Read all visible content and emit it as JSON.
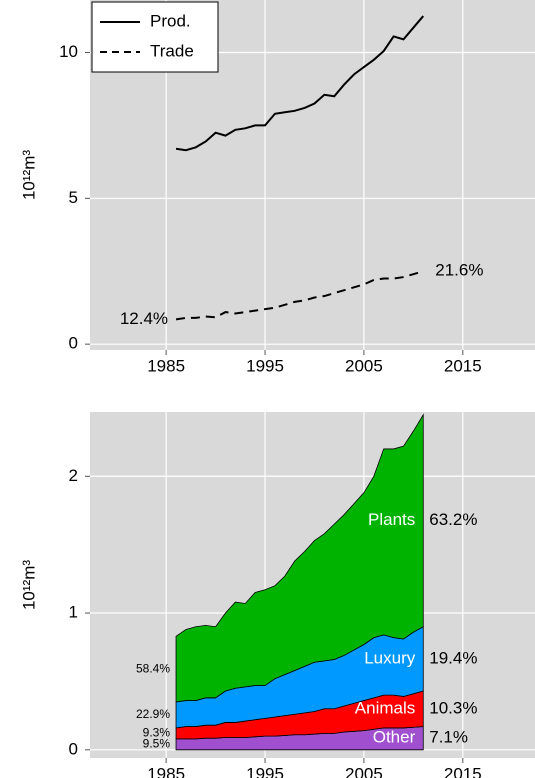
{
  "chart_data": [
    {
      "type": "line",
      "ylabel": "10¹²m³",
      "x": [
        1986,
        1987,
        1988,
        1989,
        1990,
        1991,
        1992,
        1993,
        1994,
        1995,
        1996,
        1997,
        1998,
        1999,
        2000,
        2001,
        2002,
        2003,
        2004,
        2005,
        2006,
        2007,
        2008,
        2009,
        2010,
        2011
      ],
      "series": [
        {
          "name": "Prod.",
          "color": "#000000",
          "dash": "solid",
          "values": [
            6.7,
            6.65,
            6.75,
            6.95,
            7.25,
            7.15,
            7.35,
            7.4,
            7.5,
            7.5,
            7.9,
            7.95,
            8.0,
            8.1,
            8.25,
            8.55,
            8.5,
            8.9,
            9.25,
            9.5,
            9.75,
            10.05,
            10.55,
            10.45,
            10.85,
            11.25
          ]
        },
        {
          "name": "Trade",
          "color": "#000000",
          "dash": "dashed",
          "start_label": "12.4%",
          "end_label": "21.6%",
          "values": [
            0.85,
            0.9,
            0.9,
            0.95,
            0.92,
            1.1,
            1.05,
            1.1,
            1.15,
            1.2,
            1.25,
            1.35,
            1.45,
            1.5,
            1.6,
            1.65,
            1.75,
            1.85,
            1.95,
            2.05,
            2.2,
            2.25,
            2.25,
            2.3,
            2.4,
            2.5
          ]
        }
      ],
      "xlim": [
        1977.3,
        2022.3
      ],
      "xticks": [
        1985,
        1995,
        2005,
        2015
      ],
      "ylim": [
        -0.2,
        11.8
      ],
      "yticks": [
        0,
        5,
        10
      ],
      "grid": true,
      "legend": "top-left"
    },
    {
      "type": "stacked-area",
      "ylabel": "10¹²m³",
      "x": [
        1986,
        1987,
        1988,
        1989,
        1990,
        1991,
        1992,
        1993,
        1994,
        1995,
        1996,
        1997,
        1998,
        1999,
        2000,
        2001,
        2002,
        2003,
        2004,
        2005,
        2006,
        2007,
        2008,
        2009,
        2010,
        2011
      ],
      "series": [
        {
          "name": "Other",
          "color": "#a04fcf",
          "start_label": "9.5%",
          "end_label": "7.1%",
          "values": [
            0.08,
            0.08,
            0.08,
            0.085,
            0.085,
            0.09,
            0.09,
            0.09,
            0.095,
            0.1,
            0.1,
            0.105,
            0.11,
            0.11,
            0.115,
            0.12,
            0.12,
            0.13,
            0.135,
            0.14,
            0.15,
            0.16,
            0.16,
            0.16,
            0.165,
            0.17
          ]
        },
        {
          "name": "Animals",
          "color": "#ff0000",
          "start_label": "9.3%",
          "end_label": "10.3%",
          "values": [
            0.08,
            0.09,
            0.09,
            0.095,
            0.095,
            0.11,
            0.11,
            0.12,
            0.125,
            0.13,
            0.14,
            0.145,
            0.15,
            0.16,
            0.165,
            0.18,
            0.18,
            0.19,
            0.205,
            0.22,
            0.23,
            0.24,
            0.24,
            0.23,
            0.245,
            0.26
          ]
        },
        {
          "name": "Luxury",
          "color": "#0099ff",
          "start_label": "22.9%",
          "end_label": "19.4%",
          "values": [
            0.19,
            0.19,
            0.19,
            0.2,
            0.2,
            0.23,
            0.25,
            0.25,
            0.25,
            0.24,
            0.28,
            0.3,
            0.32,
            0.34,
            0.36,
            0.35,
            0.36,
            0.37,
            0.39,
            0.41,
            0.44,
            0.44,
            0.42,
            0.42,
            0.45,
            0.47
          ]
        },
        {
          "name": "Plants",
          "color": "#00b300",
          "start_label": "58.4%",
          "end_label": "63.2%",
          "values": [
            0.48,
            0.52,
            0.54,
            0.53,
            0.52,
            0.57,
            0.63,
            0.61,
            0.68,
            0.7,
            0.68,
            0.72,
            0.8,
            0.84,
            0.89,
            0.93,
            0.99,
            1.03,
            1.07,
            1.11,
            1.18,
            1.36,
            1.38,
            1.41,
            1.47,
            1.55
          ]
        }
      ],
      "xlim": [
        1977.3,
        2022.3
      ],
      "xticks": [
        1985,
        1995,
        2005,
        2015
      ],
      "ylim": [
        -0.06,
        2.47
      ],
      "yticks": [
        0,
        1,
        2
      ],
      "grid": true
    }
  ]
}
